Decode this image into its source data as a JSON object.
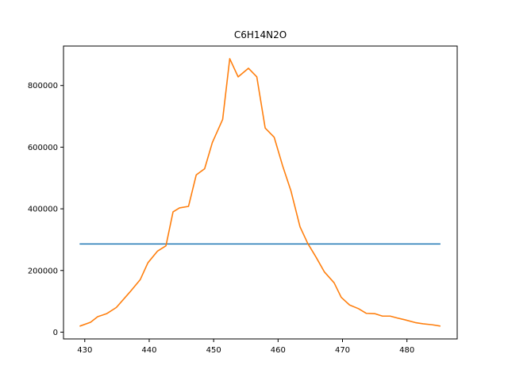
{
  "chart_data": {
    "type": "line",
    "title": "C6H14N2O",
    "xlabel": "",
    "ylabel": "",
    "xlim": [
      426.7,
      487.8
    ],
    "ylim": [
      -22000,
      928000
    ],
    "x_ticks": [
      430,
      440,
      450,
      460,
      470,
      480
    ],
    "y_ticks": [
      0,
      200000,
      400000,
      600000,
      800000
    ],
    "x_tick_labels": [
      "430",
      "440",
      "450",
      "460",
      "470",
      "480"
    ],
    "y_tick_labels": [
      "0",
      "200000",
      "400000",
      "600000",
      "800000"
    ],
    "grid": false,
    "series": [
      {
        "color": "#1f77b4",
        "x": [
          429.3,
          485.1
        ],
        "y": [
          286000,
          286000
        ]
      },
      {
        "color": "#ff7f0e",
        "x": [
          429.3,
          430.9,
          432.0,
          433.4,
          434.9,
          437.0,
          438.6,
          439.8,
          441.3,
          442.6,
          443.7,
          444.7,
          446.1,
          447.3,
          448.6,
          449.8,
          451.4,
          452.5,
          453.8,
          455.4,
          456.7,
          458.0,
          459.4,
          460.7,
          462.0,
          463.4,
          464.6,
          465.9,
          467.2,
          468.7,
          469.8,
          471.1,
          472.5,
          473.7,
          475.0,
          476.2,
          477.4,
          478.5,
          479.7,
          481.3,
          482.5,
          483.9,
          485.1
        ],
        "y": [
          20000,
          32000,
          50000,
          60000,
          80000,
          130000,
          170000,
          225000,
          263000,
          280000,
          390000,
          403000,
          408000,
          510000,
          530000,
          615000,
          690000,
          887000,
          828000,
          856000,
          828000,
          662000,
          632000,
          540000,
          458000,
          342000,
          288000,
          243000,
          195000,
          160000,
          113000,
          88000,
          76000,
          61000,
          60000,
          52000,
          52000,
          46000,
          40000,
          31000,
          27000,
          24000,
          20000
        ]
      }
    ]
  }
}
